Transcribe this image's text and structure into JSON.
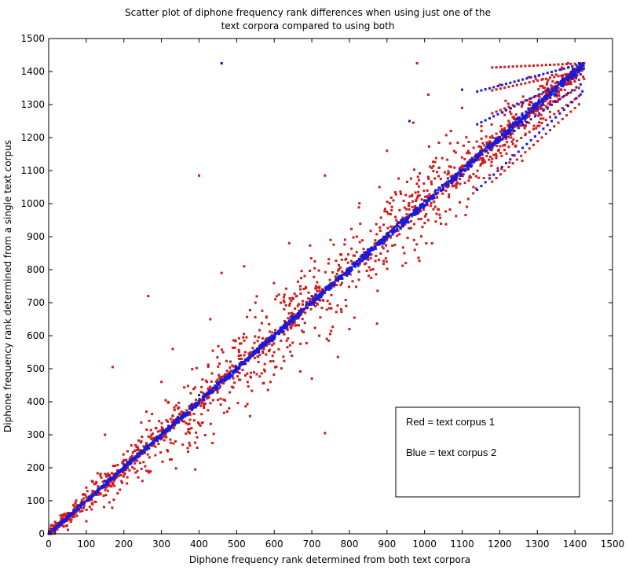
{
  "chart_data": {
    "type": "scatter",
    "title_line1": "Scatter plot of diphone frequency rank differences when using just one of the",
    "title_line2": "text corpora compared to using both",
    "xlabel": "Diphone frequency rank determined from both text corpora",
    "ylabel": "Diphone frequency rank determined from a single text corpus",
    "xlim": [
      0,
      1500
    ],
    "ylim": [
      0,
      1500
    ],
    "xticks": [
      "0",
      "100",
      "200",
      "300",
      "400",
      "500",
      "600",
      "700",
      "800",
      "900",
      "1000",
      "1100",
      "1200",
      "1300",
      "1400",
      "1500"
    ],
    "yticks": [
      "0",
      "100",
      "200",
      "300",
      "400",
      "500",
      "600",
      "700",
      "800",
      "900",
      "1000",
      "1100",
      "1200",
      "1300",
      "1400",
      "1500"
    ],
    "grid": false,
    "marker": "dot",
    "series": [
      {
        "color": "#d11a1a",
        "points": [
          [
            460,
            1425
          ],
          [
            980,
            1425
          ],
          [
            400,
            1085
          ],
          [
            735,
            1085
          ],
          [
            265,
            720
          ],
          [
            170,
            505
          ],
          [
            735,
            305
          ],
          [
            390,
            195
          ],
          [
            970,
            1245
          ],
          [
            1010,
            1330
          ],
          [
            850,
            830
          ],
          [
            720,
            600
          ],
          [
            590,
            460
          ],
          [
            300,
            460
          ],
          [
            210,
            250
          ],
          [
            150,
            300
          ],
          [
            520,
            810
          ],
          [
            460,
            790
          ],
          [
            640,
            880
          ],
          [
            880,
            1050
          ],
          [
            1100,
            1290
          ],
          [
            1190,
            1150
          ],
          [
            1010,
            950
          ],
          [
            950,
            820
          ],
          [
            800,
            620
          ],
          [
            1260,
            1130
          ],
          [
            700,
            470
          ],
          [
            550,
            700
          ],
          [
            430,
            650
          ],
          [
            330,
            560
          ],
          [
            260,
            370
          ],
          [
            140,
            170
          ],
          [
            100,
            140
          ],
          [
            900,
            1160
          ],
          [
            1200,
            1360
          ],
          [
            1130,
            1050
          ],
          [
            1020,
            880
          ],
          [
            780,
            760
          ],
          [
            660,
            720
          ],
          [
            480,
            380
          ],
          [
            380,
            320
          ],
          [
            600,
            550
          ],
          [
            750,
            890
          ],
          [
            1070,
            1220
          ],
          [
            1150,
            1120
          ],
          [
            1250,
            1250
          ],
          [
            1230,
            1200
          ],
          [
            1280,
            1300
          ]
        ]
      },
      {
        "color": "#1a1ad9",
        "points": [
          [
            460,
            1425
          ],
          [
            1420,
            1420
          ],
          [
            1420,
            1340
          ],
          [
            1100,
            1345
          ],
          [
            960,
            1250
          ],
          [
            50,
            50
          ],
          [
            200,
            210
          ],
          [
            400,
            420
          ],
          [
            600,
            590
          ],
          [
            800,
            790
          ],
          [
            1000,
            1010
          ],
          [
            1200,
            1190
          ],
          [
            1300,
            1300
          ],
          [
            1400,
            1400
          ],
          [
            300,
            290
          ],
          [
            700,
            720
          ],
          [
            900,
            910
          ],
          [
            1100,
            1100
          ],
          [
            500,
            495
          ],
          [
            150,
            160
          ],
          [
            1250,
            1260
          ],
          [
            1350,
            1330
          ]
        ]
      }
    ],
    "legend": {
      "placement": "lower-right",
      "entries": [
        "Red = text corpus 1",
        "Blue = text corpus 2"
      ]
    }
  }
}
